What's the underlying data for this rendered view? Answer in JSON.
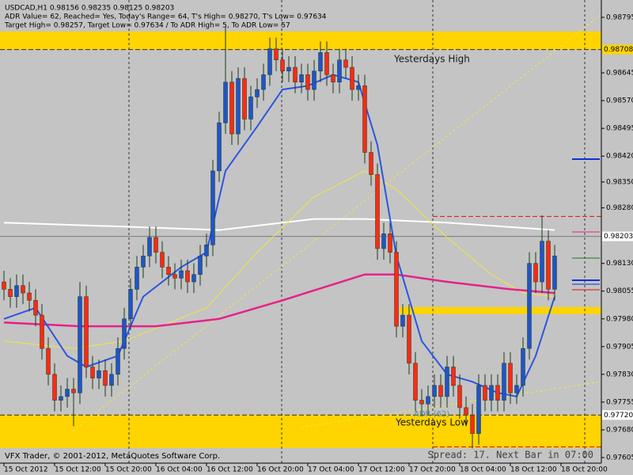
{
  "chart_data": {
    "type": "candlestick",
    "header": [
      "USDCAD,H1  0.98156 0.98235 0.98125 0.98203",
      "ADR Value= 62, Reached= Yes, Today's Range= 64, T's High= 0.98270, T's Low= 0.97634",
      "Target High= 0.98257, Target Low= 0.97634 / To ADR High= 5, To ADR Low= 57"
    ],
    "annotations": [
      "Yesterdays High",
      "Yesterdays Low",
      "ADR (62)"
    ],
    "footer": [
      "VFX Trader, © 2001-2012, MetaQuotes Software Corp.",
      "Spread: 17. Next Bar in 07:00"
    ],
    "background": "#c4c4c4",
    "bull_color": "#2154c8",
    "bear_color": "#ff2a14",
    "wick_color": "#1c3a1c",
    "ylim": [
      0.9759,
      0.98842
    ],
    "xlim": [
      -0.625,
      94.375
    ],
    "yticks": [
      0.98795,
      0.98645,
      {
        "value": 0.9857,
        "label": "0.98570"
      },
      0.98495,
      {
        "value": 0.9842,
        "label": "0.98420"
      },
      {
        "value": 0.9835,
        "label": "0.98350"
      },
      {
        "value": 0.9828,
        "label": "0.98280"
      },
      {
        "value": 0.9813,
        "label": "0.98130"
      },
      0.98055,
      {
        "value": 0.9798,
        "label": "0.97980"
      },
      0.97905,
      {
        "value": 0.9783,
        "label": "0.97830"
      },
      0.97755,
      {
        "value": 0.9768,
        "label": "0.97680"
      },
      0.97605
    ],
    "xticks": [
      {
        "value": 0,
        "label": "15 Oct 2012"
      },
      {
        "value": 8,
        "label": "15 Oct 12:00"
      },
      {
        "value": 16,
        "label": "15 Oct 20:00"
      },
      {
        "value": 24,
        "label": "16 Oct 04:00"
      },
      {
        "value": 32,
        "label": "16 Oct 12:00"
      },
      {
        "value": 40,
        "label": "16 Oct 20:00"
      },
      {
        "value": 48,
        "label": "17 Oct 04:00"
      },
      {
        "value": 56,
        "label": "17 Oct 12:00"
      },
      {
        "value": 64,
        "label": "17 Oct 20:00"
      },
      {
        "value": 72,
        "label": "18 Oct 04:00"
      },
      {
        "value": 80,
        "label": "18 Oct 12:00"
      },
      {
        "value": 88,
        "label": "18 Oct 20:00"
      }
    ],
    "candles": [
      [
        0.9808,
        0.9811,
        0.9803,
        0.9806
      ],
      [
        0.9806,
        0.9809,
        0.9801,
        0.9804
      ],
      [
        0.9804,
        0.981,
        0.9801,
        0.9807
      ],
      [
        0.9807,
        0.981,
        0.9802,
        0.9805
      ],
      [
        0.9805,
        0.9808,
        0.98,
        0.9803
      ],
      [
        0.9803,
        0.9806,
        0.9796,
        0.9799
      ],
      [
        0.9799,
        0.9802,
        0.9787,
        0.979
      ],
      [
        0.979,
        0.9793,
        0.978,
        0.9783
      ],
      [
        0.9783,
        0.9786,
        0.9773,
        0.9776
      ],
      [
        0.9776,
        0.978,
        0.9773,
        0.9777
      ],
      [
        0.9777,
        0.9782,
        0.9774,
        0.9779
      ],
      [
        0.9779,
        0.9782,
        0.9769,
        0.9778
      ],
      [
        0.9778,
        0.9808,
        0.9775,
        0.9804
      ],
      [
        0.9804,
        0.9807,
        0.9782,
        0.9785
      ],
      [
        0.9785,
        0.9788,
        0.9779,
        0.9782
      ],
      [
        0.9782,
        0.9787,
        0.9779,
        0.9784
      ],
      [
        0.9784,
        0.9787,
        0.9777,
        0.978
      ],
      [
        0.978,
        0.9786,
        0.9777,
        0.9783
      ],
      [
        0.9783,
        0.9793,
        0.978,
        0.979
      ],
      [
        0.979,
        0.9801,
        0.9787,
        0.9798
      ],
      [
        0.9798,
        0.9809,
        0.9795,
        0.9806
      ],
      [
        0.9806,
        0.9815,
        0.9803,
        0.9812
      ],
      [
        0.9812,
        0.9818,
        0.9809,
        0.9815
      ],
      [
        0.9815,
        0.9823,
        0.9812,
        0.982
      ],
      [
        0.982,
        0.9823,
        0.9813,
        0.9816
      ],
      [
        0.9816,
        0.9819,
        0.9809,
        0.9812
      ],
      [
        0.9812,
        0.9815,
        0.9807,
        0.981
      ],
      [
        0.981,
        0.9813,
        0.9806,
        0.9809
      ],
      [
        0.9809,
        0.9814,
        0.9806,
        0.9811
      ],
      [
        0.9811,
        0.9814,
        0.9805,
        0.9808
      ],
      [
        0.9808,
        0.9813,
        0.9805,
        0.981
      ],
      [
        0.981,
        0.9818,
        0.9807,
        0.9815
      ],
      [
        0.9815,
        0.9821,
        0.9812,
        0.9818
      ],
      [
        0.9818,
        0.9841,
        0.9815,
        0.9838
      ],
      [
        0.9838,
        0.9854,
        0.9835,
        0.9851
      ],
      [
        0.9851,
        0.9877,
        0.9848,
        0.9862
      ],
      [
        0.9862,
        0.9865,
        0.9845,
        0.9848
      ],
      [
        0.9848,
        0.9866,
        0.9845,
        0.9863
      ],
      [
        0.9863,
        0.9866,
        0.9849,
        0.9852
      ],
      [
        0.9852,
        0.9861,
        0.9849,
        0.9858
      ],
      [
        0.9858,
        0.9863,
        0.9855,
        0.986
      ],
      [
        0.986,
        0.9867,
        0.9857,
        0.9864
      ],
      [
        0.9864,
        0.9874,
        0.9861,
        0.9871
      ],
      [
        0.9871,
        0.9874,
        0.9865,
        0.9868
      ],
      [
        0.9868,
        0.9871,
        0.9862,
        0.9865
      ],
      [
        0.9865,
        0.9869,
        0.9862,
        0.9866
      ],
      [
        0.9866,
        0.9869,
        0.9859,
        0.9862
      ],
      [
        0.9862,
        0.9867,
        0.9859,
        0.9864
      ],
      [
        0.9864,
        0.9867,
        0.9857,
        0.986
      ],
      [
        0.986,
        0.9868,
        0.9857,
        0.9865
      ],
      [
        0.9865,
        0.9873,
        0.9862,
        0.987
      ],
      [
        0.987,
        0.9873,
        0.9861,
        0.9864
      ],
      [
        0.9864,
        0.9867,
        0.9859,
        0.9862
      ],
      [
        0.9862,
        0.9871,
        0.9859,
        0.9868
      ],
      [
        0.9868,
        0.9871,
        0.9863,
        0.9866
      ],
      [
        0.9866,
        0.9869,
        0.9857,
        0.986
      ],
      [
        0.986,
        0.9864,
        0.9857,
        0.9861
      ],
      [
        0.9861,
        0.9864,
        0.984,
        0.9843
      ],
      [
        0.9843,
        0.9846,
        0.9834,
        0.9837
      ],
      [
        0.9837,
        0.984,
        0.9814,
        0.9817
      ],
      [
        0.9817,
        0.9824,
        0.9814,
        0.9821
      ],
      [
        0.9821,
        0.9824,
        0.9813,
        0.9816
      ],
      [
        0.9816,
        0.9819,
        0.9793,
        0.9796
      ],
      [
        0.9796,
        0.9802,
        0.9793,
        0.9799
      ],
      [
        0.9799,
        0.9802,
        0.9783,
        0.9786
      ],
      [
        0.9786,
        0.9789,
        0.9773,
        0.9776
      ],
      [
        0.9776,
        0.9779,
        0.9772,
        0.9775
      ],
      [
        0.9775,
        0.978,
        0.9772,
        0.9777
      ],
      [
        0.9777,
        0.9783,
        0.9774,
        0.978
      ],
      [
        0.978,
        0.9783,
        0.9774,
        0.9777
      ],
      [
        0.9777,
        0.9788,
        0.9774,
        0.9785
      ],
      [
        0.9785,
        0.9788,
        0.9777,
        0.978
      ],
      [
        0.978,
        0.9783,
        0.9771,
        0.9774
      ],
      [
        0.9774,
        0.9777,
        0.9769,
        0.9772
      ],
      [
        0.9772,
        0.9775,
        0.9763,
        0.9767
      ],
      [
        0.9767,
        0.9783,
        0.9764,
        0.978
      ],
      [
        0.978,
        0.9783,
        0.9773,
        0.9776
      ],
      [
        0.9776,
        0.9783,
        0.9773,
        0.978
      ],
      [
        0.978,
        0.9783,
        0.9773,
        0.9776
      ],
      [
        0.9776,
        0.9789,
        0.9773,
        0.9786
      ],
      [
        0.9786,
        0.9789,
        0.9775,
        0.9778
      ],
      [
        0.9778,
        0.9783,
        0.9775,
        0.978
      ],
      [
        0.978,
        0.9793,
        0.9777,
        0.979
      ],
      [
        0.979,
        0.9816,
        0.9787,
        0.9813
      ],
      [
        0.9813,
        0.9816,
        0.9805,
        0.9808
      ],
      [
        0.9808,
        0.9826,
        0.9805,
        0.9819
      ],
      [
        0.9819,
        0.9822,
        0.9803,
        0.9806
      ],
      [
        0.9806,
        0.9818,
        0.9803,
        0.9815
      ]
    ],
    "zones": [
      {
        "from": 0.98757,
        "to": 0.98708,
        "x_from": -0.625,
        "color": "#ffd400"
      },
      {
        "from": 0.9772,
        "to": 0.97631,
        "x_from": -0.625,
        "color": "#ffd400"
      },
      {
        "from": 0.98012,
        "to": 0.97993,
        "x_from": 62.5,
        "color": "#ffd400"
      }
    ],
    "levels": [
      {
        "value": 0.98708,
        "x_from": -0.625,
        "color": "#303030",
        "dash": true
      },
      {
        "value": 0.9772,
        "x_from": -0.625,
        "color": "#303030",
        "dash": true
      },
      {
        "value": 0.98203,
        "x_from": -0.625,
        "color": "#7a7a7a",
        "dash": false
      },
      {
        "value": 0.98257,
        "x_from": 67.75,
        "color": "#e01010",
        "dash": true
      },
      {
        "value": 0.97634,
        "x_from": 67.75,
        "color": "#e01010",
        "dash": true
      }
    ],
    "lines": [
      {
        "color": "#ffffff",
        "width": 2,
        "x": [
          0,
          18,
          34,
          49,
          57,
          70,
          87
        ],
        "values": [
          0.9824,
          0.9823,
          0.9822,
          0.9825,
          0.9825,
          0.9824,
          0.9822
        ]
      },
      {
        "color": "#f2e640",
        "width": 1,
        "x": [
          0,
          11,
          19,
          32,
          40,
          49,
          57,
          62,
          70,
          77,
          82,
          87
        ],
        "values": [
          0.9792,
          0.979,
          0.9792,
          0.9801,
          0.9816,
          0.9831,
          0.9838,
          0.9833,
          0.982,
          0.981,
          0.9805,
          0.9804
        ]
      },
      {
        "color": "#e8208a",
        "width": 2.5,
        "x": [
          0,
          12,
          24,
          34,
          44,
          57,
          62,
          70,
          80,
          87
        ],
        "values": [
          0.9797,
          0.9796,
          0.9796,
          0.9798,
          0.9803,
          0.981,
          0.981,
          0.9808,
          0.9806,
          0.9805
        ]
      },
      {
        "color": "#2a56e0",
        "width": 2,
        "x": [
          0,
          5,
          10,
          13,
          18,
          22,
          28,
          32,
          35,
          40,
          44,
          48,
          52,
          56,
          59,
          62,
          66,
          70,
          74,
          78,
          81,
          84,
          87
        ],
        "values": [
          0.9798,
          0.9801,
          0.9788,
          0.9785,
          0.9788,
          0.9804,
          0.9812,
          0.9816,
          0.9838,
          0.985,
          0.986,
          0.9861,
          0.9864,
          0.9862,
          0.9845,
          0.9815,
          0.9792,
          0.9783,
          0.9781,
          0.9778,
          0.9777,
          0.9788,
          0.9804
        ]
      }
    ],
    "price_tags": [
      {
        "value": 0.98708,
        "color": "#ffd400"
      },
      {
        "value": 0.98203,
        "color": "#ffffff"
      },
      {
        "value": 0.9772,
        "label": "0.97720",
        "color": "#ffffff"
      }
    ]
  }
}
